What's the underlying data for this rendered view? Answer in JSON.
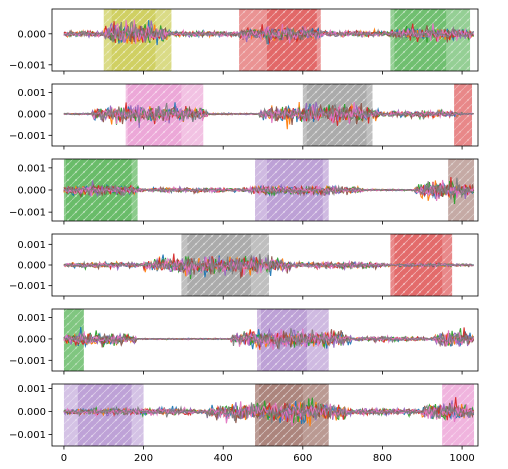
{
  "chart_data": {
    "type": "line",
    "layout": "6 stacked subplots sharing x axis",
    "grid": false,
    "legend": "none",
    "xlim": [
      -30,
      1040
    ],
    "x_ticks": [
      0,
      200,
      400,
      600,
      800,
      1000
    ],
    "x_tick_labels": [
      "0",
      "200",
      "400",
      "600",
      "800",
      "1000"
    ],
    "colors": {
      "blue": "#1f77b4",
      "orange": "#ff7f0e",
      "green": "#2ca02c",
      "red": "#d62728",
      "purple": "#9467bd",
      "brown": "#8c564b",
      "pink": "#e377c2",
      "gray": "#7f7f7f",
      "olive": "#bcbd22"
    },
    "panels": [
      {
        "ylim": [
          -0.0012,
          0.0008
        ],
        "y_ticks": [
          0.0,
          -0.001
        ],
        "y_tick_labels": [
          "0.000",
          "−0.001"
        ],
        "burst_segments": [
          [
            100,
            260,
            1.0
          ],
          [
            440,
            650,
            0.6
          ],
          [
            820,
            1030,
            0.5
          ]
        ],
        "base_noise": 0.0001,
        "regions": [
          {
            "x0": 100,
            "x1": 270,
            "color": "olive",
            "alpha": 0.55
          },
          {
            "x0": 120,
            "x1": 230,
            "color": "olive",
            "alpha": 0.35
          },
          {
            "x0": 440,
            "x1": 645,
            "color": "red",
            "alpha": 0.5
          },
          {
            "x0": 510,
            "x1": 635,
            "color": "red",
            "alpha": 0.4
          },
          {
            "x0": 820,
            "x1": 1020,
            "color": "green",
            "alpha": 0.5
          },
          {
            "x0": 830,
            "x1": 960,
            "color": "green",
            "alpha": 0.35
          }
        ]
      },
      {
        "ylim": [
          -0.0015,
          0.0014
        ],
        "y_ticks": [
          0.001,
          0.0,
          -0.001
        ],
        "y_tick_labels": [
          "0.001",
          "0.000",
          "−0.001"
        ],
        "burst_segments": [
          [
            70,
            360,
            0.9
          ],
          [
            490,
            790,
            1.0
          ],
          [
            790,
            1000,
            0.35
          ]
        ],
        "base_noise": 4e-05,
        "regions": [
          {
            "x0": 155,
            "x1": 350,
            "color": "pink",
            "alpha": 0.45
          },
          {
            "x0": 160,
            "x1": 295,
            "color": "pink",
            "alpha": 0.35
          },
          {
            "x0": 600,
            "x1": 775,
            "color": "gray",
            "alpha": 0.5
          },
          {
            "x0": 610,
            "x1": 760,
            "color": "gray",
            "alpha": 0.3
          },
          {
            "x0": 980,
            "x1": 1025,
            "color": "red",
            "alpha": 0.55
          }
        ]
      },
      {
        "ylim": [
          -0.0014,
          0.0014
        ],
        "y_ticks": [
          0.001,
          0.0,
          -0.001
        ],
        "y_tick_labels": [
          "0.001",
          "0.000",
          "−0.001"
        ],
        "burst_segments": [
          [
            0,
            200,
            0.55
          ],
          [
            200,
            450,
            0.25
          ],
          [
            450,
            750,
            0.5
          ],
          [
            880,
            1030,
            1.0
          ]
        ],
        "base_noise": 4e-05,
        "regions": [
          {
            "x0": 0,
            "x1": 185,
            "color": "green",
            "alpha": 0.55
          },
          {
            "x0": 5,
            "x1": 170,
            "color": "green",
            "alpha": 0.35
          },
          {
            "x0": 480,
            "x1": 665,
            "color": "purple",
            "alpha": 0.45
          },
          {
            "x0": 510,
            "x1": 650,
            "color": "purple",
            "alpha": 0.3
          },
          {
            "x0": 965,
            "x1": 1030,
            "color": "brown",
            "alpha": 0.5
          }
        ]
      },
      {
        "ylim": [
          -0.0015,
          0.0015
        ],
        "y_ticks": [
          0.001,
          0.0,
          -0.001
        ],
        "y_tick_labels": [
          "0.001",
          "0.000",
          "−0.001"
        ],
        "burst_segments": [
          [
            0,
            200,
            0.3
          ],
          [
            200,
            570,
            1.0
          ],
          [
            570,
            820,
            0.35
          ],
          [
            820,
            1030,
            0.15
          ]
        ],
        "base_noise": 3e-05,
        "regions": [
          {
            "x0": 295,
            "x1": 515,
            "color": "gray",
            "alpha": 0.5
          },
          {
            "x0": 310,
            "x1": 470,
            "color": "gray",
            "alpha": 0.3
          },
          {
            "x0": 820,
            "x1": 975,
            "color": "red",
            "alpha": 0.55
          },
          {
            "x0": 830,
            "x1": 950,
            "color": "red",
            "alpha": 0.3
          }
        ]
      },
      {
        "ylim": [
          -0.0015,
          0.0014
        ],
        "y_ticks": [
          0.001,
          0.0,
          -0.001
        ],
        "y_tick_labels": [
          "0.001",
          "0.000",
          "−0.001"
        ],
        "burst_segments": [
          [
            0,
            180,
            0.7
          ],
          [
            420,
            720,
            1.0
          ],
          [
            720,
            930,
            0.25
          ],
          [
            930,
            1030,
            0.9
          ]
        ],
        "base_noise": 3e-05,
        "regions": [
          {
            "x0": 0,
            "x1": 50,
            "color": "green",
            "alpha": 0.6
          },
          {
            "x0": 485,
            "x1": 665,
            "color": "purple",
            "alpha": 0.45
          },
          {
            "x0": 495,
            "x1": 610,
            "color": "purple",
            "alpha": 0.3
          }
        ]
      },
      {
        "ylim": [
          -0.0015,
          0.0012
        ],
        "y_ticks": [
          0.001,
          0.0,
          -0.001
        ],
        "y_tick_labels": [
          "0.001",
          "0.000",
          "−0.001"
        ],
        "burst_segments": [
          [
            0,
            360,
            0.35
          ],
          [
            360,
            720,
            1.0
          ],
          [
            720,
            900,
            0.35
          ],
          [
            900,
            1030,
            0.85
          ]
        ],
        "base_noise": 4e-05,
        "regions": [
          {
            "x0": 0,
            "x1": 200,
            "color": "purple",
            "alpha": 0.4
          },
          {
            "x0": 35,
            "x1": 170,
            "color": "purple",
            "alpha": 0.35
          },
          {
            "x0": 480,
            "x1": 665,
            "color": "brown",
            "alpha": 0.6
          },
          {
            "x0": 490,
            "x1": 600,
            "color": "brown",
            "alpha": 0.3
          },
          {
            "x0": 950,
            "x1": 1030,
            "color": "pink",
            "alpha": 0.55
          }
        ]
      }
    ],
    "series": [
      {
        "color": "blue"
      },
      {
        "color": "orange"
      },
      {
        "color": "green"
      },
      {
        "color": "red"
      },
      {
        "color": "purple"
      },
      {
        "color": "brown"
      },
      {
        "color": "pink"
      },
      {
        "color": "gray"
      }
    ],
    "n_points": 1030
  }
}
